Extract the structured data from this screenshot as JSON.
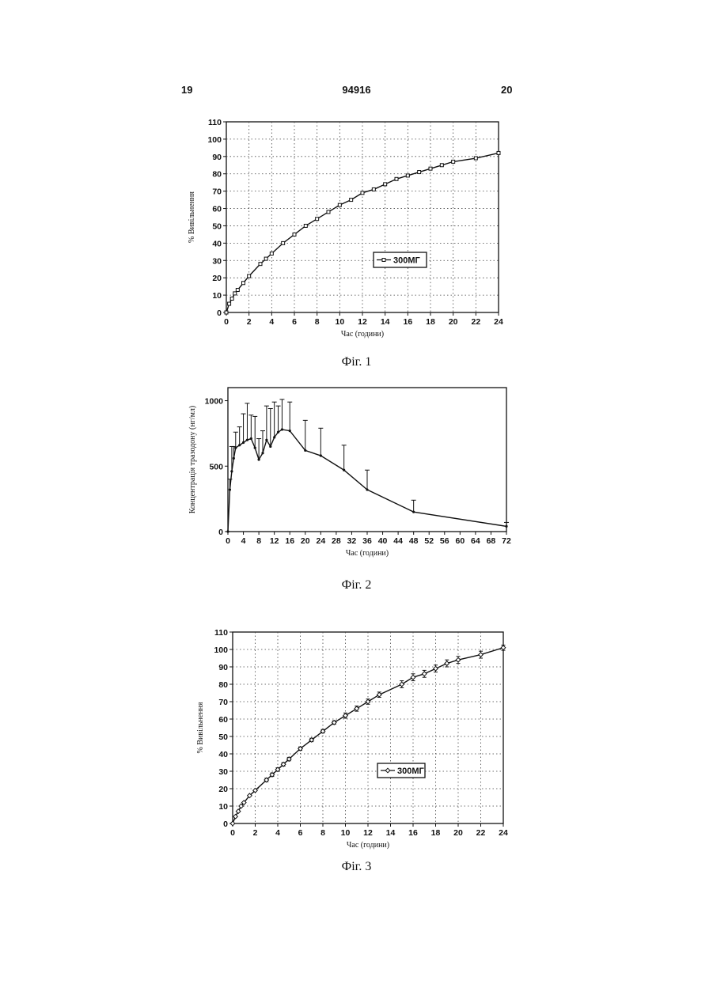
{
  "header": {
    "page_left": "19",
    "doc_number": "94916",
    "page_right": "20"
  },
  "figures": [
    {
      "caption": "Фіг. 1"
    },
    {
      "caption": "Фіг. 2"
    },
    {
      "caption": "Фіг. 3"
    }
  ],
  "chart_data": [
    {
      "type": "line",
      "xlabel": "Час (години)",
      "ylabel": "% Вивільнення",
      "xlim": [
        0,
        24
      ],
      "ylim": [
        0,
        110
      ],
      "xticks": [
        0,
        2,
        4,
        6,
        8,
        10,
        12,
        14,
        16,
        18,
        20,
        22,
        24
      ],
      "yticks": [
        0,
        10,
        20,
        30,
        40,
        50,
        60,
        70,
        80,
        90,
        100,
        110
      ],
      "grid": "dotted",
      "legend": {
        "position": "lower-right",
        "entries": [
          "300МГ"
        ]
      },
      "series": [
        {
          "name": "300МГ",
          "marker": "square",
          "x": [
            0,
            0.25,
            0.5,
            0.75,
            1,
            1.5,
            2,
            3,
            3.5,
            4,
            5,
            6,
            7,
            8,
            9,
            10,
            11,
            12,
            13,
            14,
            15,
            16,
            17,
            18,
            19,
            20,
            22,
            24
          ],
          "y": [
            0,
            5,
            8,
            11,
            13,
            17,
            21,
            28,
            31,
            34,
            40,
            45,
            50,
            54,
            58,
            62,
            65,
            69,
            71,
            74,
            77,
            79,
            81,
            83,
            85,
            87,
            89,
            92
          ]
        }
      ]
    },
    {
      "type": "line",
      "xlabel": "Час (години)",
      "ylabel": "Концентрація тразодону (нг/мл)",
      "xlim": [
        0,
        72
      ],
      "ylim": [
        0,
        1100
      ],
      "xticks": [
        0,
        4,
        8,
        12,
        16,
        20,
        24,
        28,
        32,
        36,
        40,
        44,
        48,
        52,
        56,
        60,
        64,
        68,
        72
      ],
      "yticks": [
        0,
        500,
        1000
      ],
      "grid": "none",
      "series": [
        {
          "x": [
            0,
            0.5,
            1,
            1.5,
            2,
            3,
            4,
            5,
            6,
            7,
            8,
            9,
            10,
            11,
            12,
            13,
            14,
            16,
            20,
            24,
            30,
            36,
            48,
            72
          ],
          "y": [
            0,
            320,
            460,
            560,
            640,
            660,
            680,
            700,
            710,
            640,
            550,
            600,
            700,
            650,
            720,
            760,
            780,
            770,
            620,
            580,
            470,
            320,
            150,
            40
          ],
          "error_upper": [
            0,
            400,
            650,
            650,
            760,
            800,
            900,
            980,
            890,
            880,
            710,
            770,
            960,
            940,
            990,
            960,
            1010,
            990,
            850,
            790,
            660,
            470,
            240,
            70
          ]
        }
      ]
    },
    {
      "type": "line",
      "xlabel": "Час (години)",
      "ylabel": "% Вивільнення",
      "xlim": [
        0,
        24
      ],
      "ylim": [
        0,
        110
      ],
      "xticks": [
        0,
        2,
        4,
        6,
        8,
        10,
        12,
        14,
        16,
        18,
        20,
        22,
        24
      ],
      "yticks": [
        0,
        10,
        20,
        30,
        40,
        50,
        60,
        70,
        80,
        90,
        100,
        110
      ],
      "grid": "dotted",
      "legend": {
        "position": "lower-right",
        "entries": [
          "300МГ"
        ]
      },
      "series": [
        {
          "name": "300МГ",
          "marker": "diamond",
          "x": [
            0,
            0.25,
            0.5,
            0.75,
            1,
            1.5,
            2,
            3,
            3.5,
            4,
            4.5,
            5,
            6,
            7,
            8,
            9,
            10,
            11,
            12,
            13,
            15,
            16,
            17,
            18,
            19,
            20,
            22,
            24
          ],
          "y": [
            0,
            4,
            7,
            10,
            12,
            16,
            19,
            25,
            28,
            31,
            34,
            37,
            43,
            48,
            53,
            58,
            62,
            66,
            70,
            74,
            80,
            84,
            86,
            89,
            92,
            94,
            97,
            101
          ],
          "error": [
            0,
            0,
            0,
            0,
            0,
            0,
            0,
            1,
            1,
            1,
            1,
            1,
            1,
            1,
            1,
            1,
            1.5,
            1.5,
            1.5,
            1.5,
            2,
            2,
            2,
            2,
            2,
            2,
            2,
            1.5
          ]
        }
      ]
    }
  ]
}
